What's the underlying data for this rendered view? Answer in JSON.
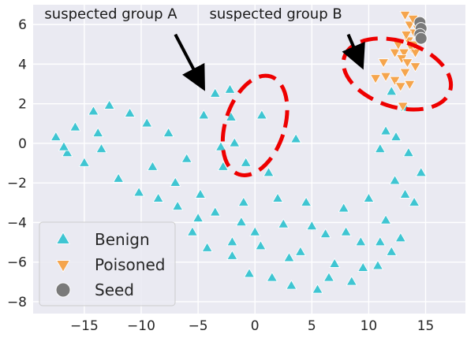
{
  "chart_data": {
    "type": "scatter",
    "title": "",
    "xlabel": "",
    "ylabel": "",
    "xlim": [
      -19.5,
      18.5
    ],
    "ylim": [
      -8.6,
      7.0
    ],
    "xticks": [
      -15,
      -10,
      -5,
      0,
      5,
      10,
      15
    ],
    "yticks": [
      -8,
      -6,
      -4,
      -2,
      0,
      2,
      4,
      6
    ],
    "grid": true,
    "legend_position": "bottom-left",
    "series": [
      {
        "name": "Benign",
        "marker": "triangle-up",
        "color": "#3fc5d2",
        "points": [
          [
            -17.5,
            0.3
          ],
          [
            -16.5,
            -0.5
          ],
          [
            -15.8,
            0.8
          ],
          [
            -15,
            -1
          ],
          [
            -14.2,
            1.6
          ],
          [
            -13.5,
            -0.3
          ],
          [
            -12.8,
            1.9
          ],
          [
            -12,
            -1.8
          ],
          [
            -11,
            1.5
          ],
          [
            -10.2,
            -2.5
          ],
          [
            -9.5,
            1.0
          ],
          [
            -8.5,
            -2.8
          ],
          [
            -7.6,
            0.5
          ],
          [
            -6.8,
            -3.2
          ],
          [
            -6,
            -0.8
          ],
          [
            -5.5,
            -4.5
          ],
          [
            -4.8,
            -2.6
          ],
          [
            -4.2,
            -5.3
          ],
          [
            -3.5,
            -3.5
          ],
          [
            -2.8,
            -1.2
          ],
          [
            -2,
            -5.7
          ],
          [
            -1.2,
            -4.0
          ],
          [
            -0.5,
            -6.6
          ],
          [
            0.5,
            -5.2
          ],
          [
            1.5,
            -6.8
          ],
          [
            2.5,
            -4.1
          ],
          [
            3.2,
            -7.2
          ],
          [
            4.0,
            -5.5
          ],
          [
            4.5,
            -3.0
          ],
          [
            5.5,
            -7.4
          ],
          [
            6.2,
            -4.6
          ],
          [
            7,
            -6.1
          ],
          [
            7.8,
            -3.3
          ],
          [
            8.5,
            -7.0
          ],
          [
            9.3,
            -5.0
          ],
          [
            10,
            -2.8
          ],
          [
            10.8,
            -6.2
          ],
          [
            11.5,
            -3.9
          ],
          [
            12.3,
            -1.9
          ],
          [
            12.8,
            -4.8
          ],
          [
            13.5,
            -0.5
          ],
          [
            14,
            -3.0
          ],
          [
            14.6,
            -1.5
          ],
          [
            -2.2,
            2.7
          ],
          [
            -3.5,
            2.5
          ],
          [
            -2.1,
            1.3
          ],
          [
            0.6,
            1.4
          ],
          [
            -4.5,
            1.4
          ],
          [
            -3.0,
            -0.2
          ],
          [
            -0.8,
            -1.0
          ],
          [
            1.2,
            -1.5
          ],
          [
            3.6,
            0.2
          ],
          [
            -1.8,
            0.0
          ],
          [
            11.5,
            0.6
          ],
          [
            12.4,
            0.3
          ],
          [
            13.2,
            1.8
          ],
          [
            11.0,
            -0.3
          ],
          [
            12.0,
            2.6
          ],
          [
            -16.8,
            -0.2
          ],
          [
            -13.8,
            0.5
          ],
          [
            -9.0,
            -1.2
          ],
          [
            -7.0,
            -2.0
          ],
          [
            -5.0,
            -3.8
          ],
          [
            -1.0,
            -3.0
          ],
          [
            2.0,
            -2.8
          ],
          [
            5.0,
            -4.2
          ],
          [
            8.0,
            -4.5
          ],
          [
            11.0,
            -5.0
          ],
          [
            13.2,
            -2.6
          ],
          [
            -2.0,
            -5.0
          ],
          [
            0.0,
            -4.5
          ],
          [
            3.0,
            -5.8
          ],
          [
            6.5,
            -6.8
          ],
          [
            9.5,
            -6.3
          ],
          [
            12.0,
            -5.5
          ]
        ]
      },
      {
        "name": "Poisoned",
        "marker": "triangle-down",
        "color": "#f5a54d",
        "points": [
          [
            13.2,
            6.5
          ],
          [
            13.6,
            6.0
          ],
          [
            14.0,
            5.6
          ],
          [
            13.5,
            5.2
          ],
          [
            13.8,
            4.8
          ],
          [
            13.1,
            4.6
          ],
          [
            12.9,
            4.3
          ],
          [
            13.4,
            4.1
          ],
          [
            14.1,
            4.6
          ],
          [
            14.0,
            5.0
          ],
          [
            13.9,
            6.3
          ],
          [
            14.3,
            5.8
          ],
          [
            12.3,
            4.6
          ],
          [
            11.3,
            4.1
          ],
          [
            11.5,
            3.4
          ],
          [
            10.6,
            3.3
          ],
          [
            12.3,
            3.2
          ],
          [
            12.8,
            2.9
          ],
          [
            13.6,
            3.0
          ],
          [
            13.2,
            3.6
          ],
          [
            13.0,
            1.9
          ],
          [
            14.1,
            3.9
          ],
          [
            12.6,
            5.0
          ],
          [
            13.3,
            5.5
          ]
        ]
      },
      {
        "name": "Seed",
        "marker": "circle",
        "color": "#7a7a7a",
        "points": [
          [
            14.5,
            6.1
          ],
          [
            14.6,
            5.8
          ],
          [
            14.5,
            5.5
          ],
          [
            14.6,
            5.3
          ]
        ]
      }
    ],
    "annotations": [
      {
        "text": "suspected group A",
        "text_x": -18.5,
        "text_y": 6.3,
        "arrow_from": [
          -7.0,
          5.5
        ],
        "arrow_to": [
          -4.9,
          3.2
        ]
      },
      {
        "text": "suspected group B",
        "text_x": -4.0,
        "text_y": 6.3,
        "arrow_from": [
          8.2,
          5.5
        ],
        "arrow_to": [
          9.1,
          4.3
        ]
      }
    ],
    "ellipses": [
      {
        "cx": 0.0,
        "cy": 0.9,
        "rx": 5.4,
        "ry": 2.6,
        "angle": 18,
        "color": "#ee0000"
      },
      {
        "cx": 12.5,
        "cy": 3.5,
        "rx": 6.0,
        "ry": 2.8,
        "angle": -72,
        "color": "#ee0000"
      }
    ]
  }
}
